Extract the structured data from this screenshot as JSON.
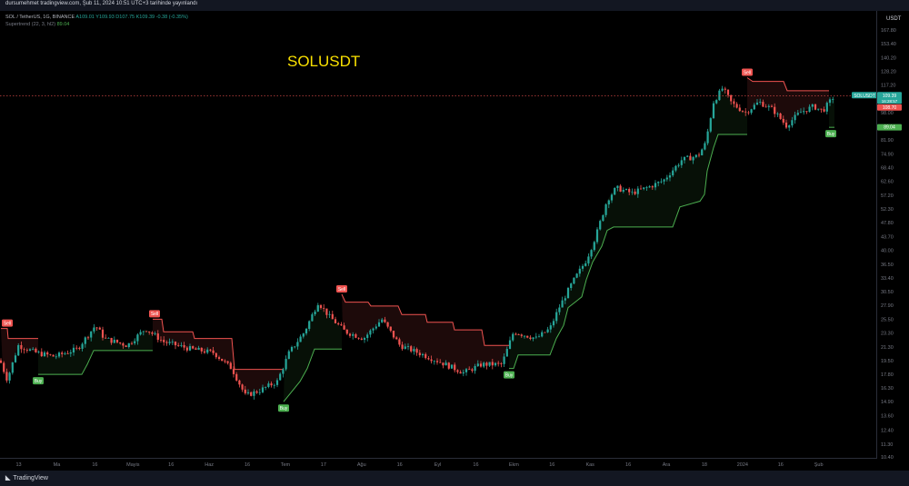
{
  "header": {
    "published": "dursumehmet tradingview.com, Şub 11, 2024 10:51 UTC+3 tarihinde yayınlandı"
  },
  "legend": {
    "line1_prefix": "SOL / TetherUS, 1G, BINANCE",
    "line1_values": "A109.01 Y109.93 D107.75 K109.39 -0.38 (-0.35%)",
    "line2_label": "Supertrend (22, 3, hl2)",
    "line2_value": "89.04"
  },
  "annotation": "SOLUSDT",
  "currency": "USDT",
  "brand": "TradingView",
  "price_badges": {
    "symbol": "SOLUSDT",
    "last": "109.39",
    "countdown": "16:28:57",
    "stop_high": "108.70",
    "stop_low": "89.04"
  },
  "colors": {
    "up": "#26a69a",
    "down": "#ef5350",
    "st_up": "#4caf50",
    "st_down": "#ef5350",
    "text": "#b2b5be"
  },
  "chart_data": {
    "type": "candlestick",
    "scale": "log",
    "y_ticks": [
      10.4,
      11.3,
      12.4,
      13.6,
      14.9,
      16.3,
      17.8,
      19.5,
      21.3,
      23.3,
      25.5,
      27.9,
      30.5,
      33.4,
      36.5,
      40.0,
      43.7,
      47.8,
      52.3,
      57.2,
      62.6,
      68.4,
      74.9,
      81.9,
      89.6,
      98.0,
      107.2,
      117.2,
      128.2,
      140.2,
      153.4,
      167.8
    ],
    "x_labels": [
      "13",
      "Ma",
      "16",
      "Mayis",
      "16",
      "Haz",
      "16",
      "Tem",
      "17",
      "Ağu",
      "16",
      "Eyl",
      "16",
      "Ekm",
      "16",
      "Kas",
      "16",
      "Ara",
      "18",
      "2024",
      "16",
      "Şub"
    ],
    "signals": [
      {
        "label": "Sell",
        "type": "sell"
      },
      {
        "label": "Buy",
        "type": "buy"
      },
      {
        "label": "Sell",
        "type": "sell"
      },
      {
        "label": "Buy",
        "type": "buy"
      },
      {
        "label": "Sell",
        "type": "sell"
      },
      {
        "label": "Buy",
        "type": "buy"
      },
      {
        "label": "Sell",
        "type": "sell"
      },
      {
        "label": "Buy",
        "type": "buy"
      }
    ]
  }
}
